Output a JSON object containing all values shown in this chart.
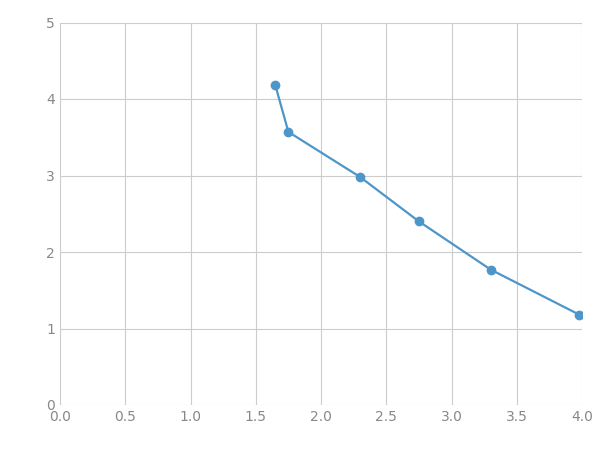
{
  "x": [
    1.65,
    1.75,
    2.3,
    2.75,
    3.3,
    3.98
  ],
  "y": [
    4.18,
    3.57,
    2.98,
    2.4,
    1.77,
    1.18
  ],
  "line_color": "#4d96c9",
  "marker_color": "#4d96c9",
  "marker_size": 6,
  "line_width": 1.6,
  "xlim": [
    0.0,
    4.0
  ],
  "ylim": [
    0,
    5
  ],
  "xticks": [
    0.0,
    0.5,
    1.0,
    1.5,
    2.0,
    2.5,
    3.0,
    3.5,
    4.0
  ],
  "yticks": [
    0,
    1,
    2,
    3,
    4,
    5
  ],
  "grid": true,
  "background_color": "#ffffff",
  "tick_color": "#888888",
  "tick_fontsize": 10,
  "grid_color": "#cccccc",
  "grid_linewidth": 0.8
}
